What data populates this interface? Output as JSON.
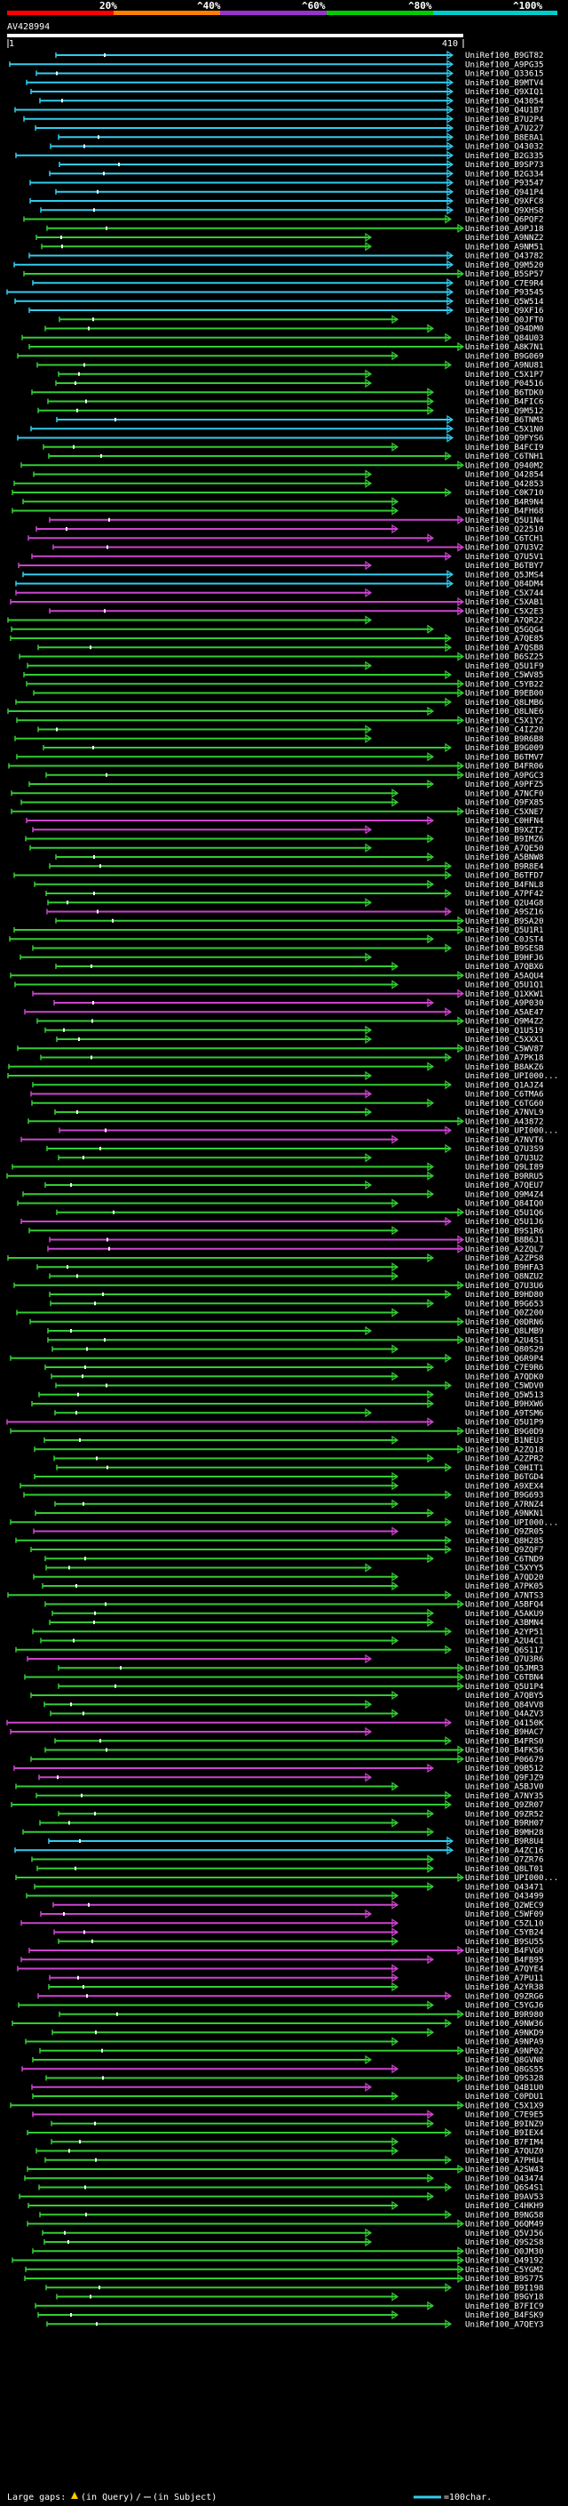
{
  "legend": {
    "labels": [
      "20%",
      "^40%",
      "^60%",
      "^80%",
      "^100%"
    ],
    "segment_colors": [
      "#ff0000",
      "#ff8000",
      "#9933cc",
      "#00cc00",
      "#00cccc"
    ]
  },
  "query": {
    "accession": "AV428994",
    "start": "1",
    "end": "410"
  },
  "colors": {
    "green": "#33cc33",
    "magenta": "#cc44cc",
    "cyan": "#33ccee",
    "query_bar": "#ffffff",
    "background": "#000000"
  },
  "hits": [
    "UniRef100_B9GT82",
    "UniRef100_A9PG35",
    "UniRef100_Q33615",
    "UniRef100_B9MTV4",
    "UniRef100_Q9XIQ1",
    "UniRef100_Q43054",
    "UniRef100_Q4U1B7",
    "UniRef100_B7U2P4",
    "UniRef100_A7U227",
    "UniRef100_B8E8A1",
    "UniRef100_Q43032",
    "UniRef100_B2G335",
    "UniRef100_B9SP73",
    "UniRef100_B2G334",
    "UniRef100_P93547",
    "UniRef100_Q941P4",
    "UniRef100_Q9XFC8",
    "UniRef100_Q9XHS8",
    "UniRef100_Q6PQF2",
    "UniRef100_A9PJ18",
    "UniRef100_A9NNZ2",
    "UniRef100_A9NM51",
    "UniRef100_Q43782",
    "UniRef100_Q9M520",
    "UniRef100_B5SP57",
    "UniRef100_C7E9R4",
    "UniRef100_P93545",
    "UniRef100_Q5W514",
    "UniRef100_Q9XF16",
    "UniRef100_Q0JFT0",
    "UniRef100_Q94DM0",
    "UniRef100_Q84U03",
    "UniRef100_A8K7N1",
    "UniRef100_B9G069",
    "UniRef100_A9NU81",
    "UniRef100_C5X1P7",
    "UniRef100_P04516",
    "UniRef100_B6TDK0",
    "UniRef100_B4FIC6",
    "UniRef100_Q9M512",
    "UniRef100_B6TNM3",
    "UniRef100_C5X1N0",
    "UniRef100_Q9FYS6",
    "UniRef100_B4FCI9",
    "UniRef100_C6TNH1",
    "UniRef100_Q940M2",
    "UniRef100_Q42854",
    "UniRef100_Q42853",
    "UniRef100_C0K710",
    "UniRef100_B4R9N4",
    "UniRef100_B4FH68",
    "UniRef100_Q5U1N4",
    "UniRef100_Q22510",
    "UniRef100_C6TCH1",
    "UniRef100_Q7U3V2",
    "UniRef100_Q7U5V1",
    "UniRef100_B6TBY7",
    "UniRef100_Q5JMS4",
    "UniRef100_Q84DM4",
    "UniRef100_C5X744",
    "UniRef100_C5XAB1",
    "UniRef100_C5X2E3",
    "UniRef100_A7QR22",
    "UniRef100_Q5GQG4",
    "UniRef100_A7QE85",
    "UniRef100_A7QSB8",
    "UniRef100_B6SZ25",
    "UniRef100_Q5U1F9",
    "UniRef100_C5WV85",
    "UniRef100_C5YB22",
    "UniRef100_B9EB00",
    "UniRef100_Q8LMB6",
    "UniRef100_Q8LNE6",
    "UniRef100_C5X1Y2",
    "UniRef100_C4IZ20",
    "UniRef100_B9R6B8",
    "UniRef100_B9G009",
    "UniRef100_B6TMV7",
    "UniRef100_B4FR06",
    "UniRef100_A9PGC3",
    "UniRef100_A9PFZ5",
    "UniRef100_A7NCF0",
    "UniRef100_Q9FX85",
    "UniRef100_C5XNE7",
    "UniRef100_C0HFN4",
    "UniRef100_B9XZT2",
    "UniRef100_B9IMZ6",
    "UniRef100_A7QE50",
    "UniRef100_A5BNW8",
    "UniRef100_B9R8E4",
    "UniRef100_B6TFD7",
    "UniRef100_B4FNL8",
    "UniRef100_A7PF42",
    "UniRef100_Q2U4G8",
    "UniRef100_A9SZ16",
    "UniRef100_B9SA20",
    "UniRef100_Q5U1R1",
    "UniRef100_C0JST4",
    "UniRef100_B9SESB",
    "UniRef100_B9HFJ6",
    "UniRef100_A7QBX6",
    "UniRef100_A5AQU4",
    "UniRef100_Q5U1Q1",
    "UniRef100_Q1XKW1",
    "UniRef100_A9P030",
    "UniRef100_A5AE47",
    "UniRef100_Q9M4Z2",
    "UniRef100_Q1U519",
    "UniRef100_C5XXX1",
    "UniRef100_C5WV87",
    "UniRef100_A7PK18",
    "UniRef100_B8AKZ6",
    "UniRef100_UPI000...",
    "UniRef100_Q1AJZ4",
    "UniRef100_C6TMA6",
    "UniRef100_C6TG60",
    "UniRef100_A7NVL9",
    "UniRef100_A43872",
    "UniRef100_UPI000...",
    "UniRef100_A7NVT6",
    "UniRef100_Q7U3S9",
    "UniRef100_Q7U3U2",
    "UniRef100_Q9LI89",
    "UniRef100_B9RRU5",
    "UniRef100_A7QEU7",
    "UniRef100_Q9M4Z4",
    "UniRef100_Q84IQ0",
    "UniRef100_Q5U1Q6",
    "UniRef100_Q5U1J6",
    "UniRef100_B9S1R6",
    "UniRef100_B8B6J1",
    "UniRef100_A2ZQL7",
    "UniRef100_A2ZPS8",
    "UniRef100_B9HFA3",
    "UniRef100_Q8NZU2",
    "UniRef100_Q7U3U6",
    "UniRef100_B9HD80",
    "UniRef100_B9G653",
    "UniRef100_Q0Z200",
    "UniRef100_Q0DRN6",
    "UniRef100_Q8LMB9",
    "UniRef100_A2U4S1",
    "UniRef100_Q80S29",
    "UniRef100_Q6R9P4",
    "UniRef100_C7E9R6",
    "UniRef100_A7QDK0",
    "UniRef100_C5WDV0",
    "UniRef100_Q5W513",
    "UniRef100_B9HXW6",
    "UniRef100_A9TSM6",
    "UniRef100_Q5U1P9",
    "UniRef100_B9G0D9",
    "UniRef100_B1NEU3",
    "UniRef100_A2ZQ18",
    "UniRef100_A2ZPR2",
    "UniRef100_C0HIT1",
    "UniRef100_B6TGD4",
    "UniRef100_A9XEX4",
    "UniRef100_B9G693",
    "UniRef100_A7RNZ4",
    "UniRef100_A9NKN1",
    "UniRef100_UPI000...",
    "UniRef100_Q9ZR05",
    "UniRef100_Q8H285",
    "UniRef100_Q9ZQF7",
    "UniRef100_C6TND9",
    "UniRef100_C5XYY5",
    "UniRef100_A7QD20",
    "UniRef100_A7PK05",
    "UniRef100_A7NTS3",
    "UniRef100_A5BFQ4",
    "UniRef100_A5AKU9",
    "UniRef100_A3BMN4",
    "UniRef100_A2YP51",
    "UniRef100_A2U4C1",
    "UniRef100_Q6S117",
    "UniRef100_Q7U3R6",
    "UniRef100_Q5JMR3",
    "UniRef100_C6TBN4",
    "UniRef100_Q5U1P4",
    "UniRef100_A7QBY5",
    "UniRef100_Q84VV8",
    "UniRef100_Q4AZV3",
    "UniRef100_Q4150K",
    "UniRef100_B9HAC7",
    "UniRef100_B4FRS0",
    "UniRef100_B4FK56",
    "UniRef100_P06679",
    "UniRef100_Q9B512",
    "UniRef100_Q9FJZ9",
    "UniRef100_A5BJV0",
    "UniRef100_A7NY35",
    "UniRef100_Q9ZR07",
    "UniRef100_Q9ZR52",
    "UniRef100_B9RH07",
    "UniRef100_B9MH28",
    "UniRef100_B9R8U4",
    "UniRef100_A4ZC16",
    "UniRef100_Q7ZR76",
    "UniRef100_Q8LT01",
    "UniRef100_UPI000...",
    "UniRef100_Q43471",
    "UniRef100_Q43499",
    "UniRef100_Q2WEC9",
    "UniRef100_C5WF09",
    "UniRef100_C5ZL10",
    "UniRef100_C5YB24",
    "UniRef100_B9SU55",
    "UniRef100_B4FVG0",
    "UniRef100_B4FB95",
    "UniRef100_A7QYE4",
    "UniRef100_A7PU11",
    "UniRef100_A2YR38",
    "UniRef100_Q9ZRG6",
    "UniRef100_C5YGJ6",
    "UniRef100_B9R980",
    "UniRef100_A9NW36",
    "UniRef100_A9NKD9",
    "UniRef100_A9NPA9",
    "UniRef100_A9NP02",
    "UniRef100_Q8GVN8",
    "UniRef100_Q8GS55",
    "UniRef100_Q9S328",
    "UniRef100_Q4B1U0",
    "UniRef100_C0PDU1",
    "UniRef100_C5X1X9",
    "UniRef100_C7E9E5",
    "UniRef100_B9INZ9",
    "UniRef100_B9IEX4",
    "UniRef100_B7FIM4",
    "UniRef100_A7QUZ0",
    "UniRef100_A7PHU4",
    "UniRef100_A2SW43",
    "UniRef100_Q43474",
    "UniRef100_Q6S4S1",
    "UniRef100_B9AV53",
    "UniRef100_C4HKH9",
    "UniRef100_B9NG58",
    "UniRef100_Q6QM49",
    "UniRef100_Q5VJ56",
    "UniRef100_Q9S2S8",
    "UniRef100_Q0JM30",
    "UniRef100_Q49192",
    "UniRef100_C5YGM2",
    "UniRef100_B9S775",
    "UniRef100_B9I198",
    "UniRef100_B9GY18",
    "UniRef100_B7FIC9",
    "UniRef100_B4FSK9",
    "UniRef100_A7QEY3"
  ],
  "footer": {
    "large_gaps_label": "Large gaps:",
    "in_query": "(in Query)",
    "in_subject": "(in Subject)",
    "scale_label": "=100char."
  }
}
